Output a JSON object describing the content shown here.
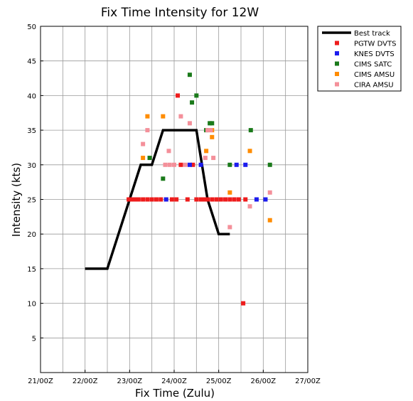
{
  "chart_data": {
    "type": "scatter",
    "title": "Fix Time Intensity for 12W",
    "xlabel": "Fix Time (Zulu)",
    "ylabel": "Intensity (kts)",
    "xlim": [
      21.0,
      27.0
    ],
    "ylim": [
      0,
      50
    ],
    "x_ticks": [
      "21/00Z",
      "22/00Z",
      "23/00Z",
      "24/00Z",
      "25/00Z",
      "26/00Z",
      "27/00Z"
    ],
    "y_ticks": [
      "5",
      "10",
      "15",
      "20",
      "25",
      "30",
      "35",
      "40",
      "45",
      "50"
    ],
    "grid": true,
    "legend_position": "outside-top-right",
    "series": [
      {
        "name": "Best track",
        "kind": "line",
        "color": "#000000",
        "x": [
          22.0,
          22.5,
          23.0,
          23.25,
          23.5,
          23.75,
          24.0,
          24.25,
          24.5,
          24.75,
          25.0,
          25.25
        ],
        "y": [
          15,
          15,
          25,
          30,
          30,
          35,
          35,
          35,
          35,
          25,
          20,
          20
        ]
      },
      {
        "name": "PGTW DVTS",
        "kind": "scatter",
        "color": "#ee1c1c",
        "x": [
          22.98,
          23.05,
          23.12,
          23.2,
          23.3,
          23.4,
          23.5,
          23.6,
          23.7,
          23.82,
          23.95,
          24.05,
          24.08,
          24.15,
          24.3,
          24.42,
          24.5,
          24.6,
          24.68,
          24.75,
          24.85,
          24.95,
          25.05,
          25.15,
          25.25,
          25.35,
          25.45,
          25.55,
          25.6
        ],
        "y": [
          25,
          25,
          25,
          25,
          25,
          25,
          25,
          25,
          25,
          25,
          25,
          25,
          40,
          30,
          25,
          30,
          25,
          25,
          25,
          25,
          25,
          25,
          25,
          25,
          25,
          25,
          25,
          10,
          25
        ]
      },
      {
        "name": "KNES DVTS",
        "kind": "scatter",
        "color": "#1c1cee",
        "x": [
          23.82,
          24.35,
          24.6,
          25.4,
          25.6,
          25.85,
          26.05
        ],
        "y": [
          25,
          30,
          30,
          30,
          30,
          25,
          25
        ]
      },
      {
        "name": "CIMS SATC",
        "kind": "scatter",
        "color": "#1a7a1a",
        "x": [
          23.45,
          23.75,
          24.35,
          24.4,
          24.5,
          24.72,
          24.8,
          24.85,
          25.25,
          25.72,
          26.15
        ],
        "y": [
          31,
          28,
          43,
          39,
          40,
          35,
          36,
          36,
          30,
          35,
          30
        ]
      },
      {
        "name": "CIMS AMSU",
        "kind": "scatter",
        "color": "#ff8c00",
        "x": [
          23.3,
          23.4,
          23.75,
          24.72,
          24.85,
          24.85,
          25.25,
          25.7,
          26.15
        ],
        "y": [
          31,
          37,
          37,
          32,
          35,
          34,
          26,
          32,
          22
        ]
      },
      {
        "name": "CIRA AMSU",
        "kind": "scatter",
        "color": "#f4909a",
        "x": [
          23.3,
          23.4,
          23.8,
          23.88,
          23.9,
          24.0,
          24.15,
          24.25,
          24.35,
          24.7,
          24.75,
          24.82,
          24.88,
          25.25,
          25.7,
          26.15
        ],
        "y": [
          33,
          35,
          30,
          32,
          30,
          30,
          37,
          30,
          36,
          31,
          35,
          35,
          31,
          21,
          24,
          26
        ]
      }
    ]
  }
}
